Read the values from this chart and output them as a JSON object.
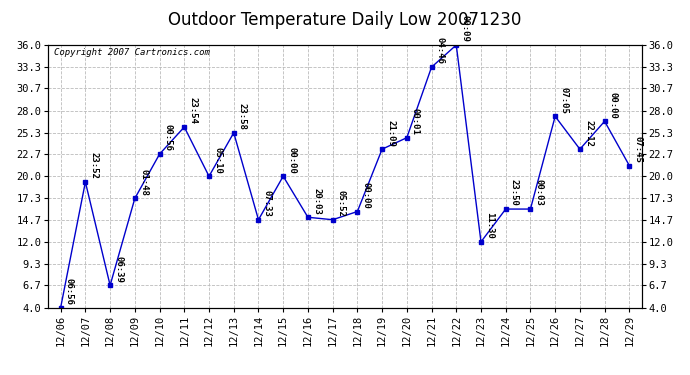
{
  "title": "Outdoor Temperature Daily Low 20071230",
  "copyright": "Copyright 2007 Cartronics.com",
  "x_labels": [
    "12/06",
    "12/07",
    "12/08",
    "12/09",
    "12/10",
    "12/11",
    "12/12",
    "12/13",
    "12/14",
    "12/15",
    "12/16",
    "12/17",
    "12/18",
    "12/19",
    "12/20",
    "12/21",
    "12/22",
    "12/23",
    "12/24",
    "12/25",
    "12/26",
    "12/27",
    "12/28",
    "12/29"
  ],
  "y_values": [
    4.0,
    19.3,
    6.7,
    17.3,
    22.7,
    26.0,
    20.0,
    25.3,
    14.7,
    20.0,
    15.0,
    14.7,
    15.7,
    23.3,
    24.7,
    33.3,
    36.0,
    12.0,
    16.0,
    16.0,
    27.3,
    23.3,
    26.7,
    21.3
  ],
  "point_labels": [
    "06:56",
    "23:52",
    "06:39",
    "01:48",
    "00:56",
    "23:54",
    "05:10",
    "23:58",
    "07:33",
    "00:00",
    "20:03",
    "05:52",
    "00:00",
    "21:09",
    "00:01",
    "04:46",
    "00:09",
    "11:30",
    "23:50",
    "00:03",
    "07:05",
    "22:12",
    "00:00",
    "07:45"
  ],
  "y_ticks": [
    4.0,
    6.7,
    9.3,
    12.0,
    14.7,
    17.3,
    20.0,
    22.7,
    25.3,
    28.0,
    30.7,
    33.3,
    36.0
  ],
  "line_color": "#0000cc",
  "marker_color": "#0000cc",
  "bg_color": "#ffffff",
  "plot_bg_color": "#ffffff",
  "grid_color": "#bbbbbb",
  "title_fontsize": 12,
  "label_fontsize": 7.5,
  "point_label_fontsize": 6.5,
  "ylim_min": 4.0,
  "ylim_max": 36.0
}
